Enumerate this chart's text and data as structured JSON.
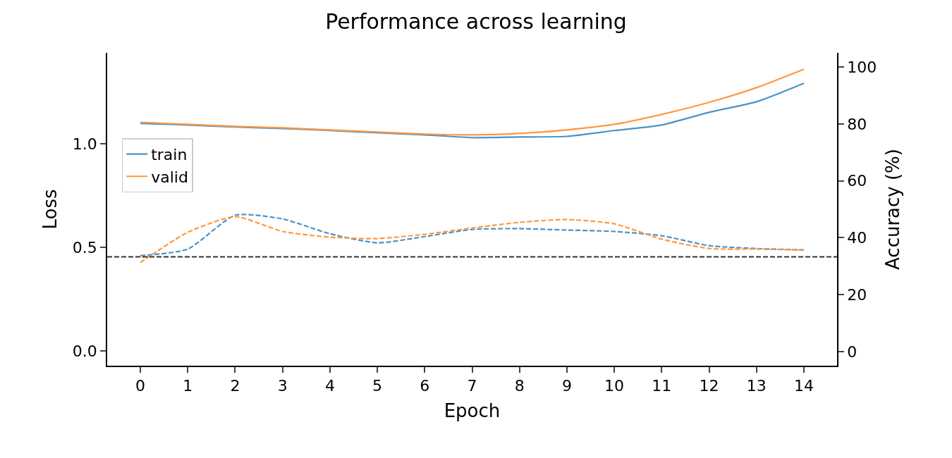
{
  "chart_data": {
    "type": "line",
    "title": "Performance across learning",
    "xlabel": "Epoch",
    "ylabel": "Loss",
    "y2label": "Accuracy (%)",
    "x": [
      0,
      1,
      2,
      3,
      4,
      5,
      6,
      7,
      8,
      9,
      10,
      11,
      12,
      13,
      14
    ],
    "series": [
      {
        "name": "train",
        "color": "#4a93c6",
        "line_style": "solid",
        "values": [
          1.099,
          1.092,
          1.082,
          1.075,
          1.065,
          1.054,
          1.044,
          1.031,
          1.034,
          1.037,
          1.065,
          1.092,
          1.153,
          1.204,
          1.293
        ]
      },
      {
        "name": "valid",
        "color": "#ff993e",
        "line_style": "solid",
        "values": [
          1.105,
          1.095,
          1.085,
          1.078,
          1.068,
          1.058,
          1.048,
          1.044,
          1.051,
          1.068,
          1.095,
          1.143,
          1.201,
          1.272,
          1.361
        ]
      },
      {
        "color": "#4a93c6",
        "line_style": "dashed",
        "axis": "y2",
        "values": [
          33.7,
          36.0,
          47.9,
          46.6,
          41.4,
          38.2,
          40.4,
          42.9,
          43.2,
          42.7,
          42.2,
          40.7,
          37.2,
          36.2,
          35.7
        ]
      },
      {
        "color": "#ff993e",
        "line_style": "dashed",
        "axis": "y2",
        "values": [
          31.3,
          41.9,
          47.4,
          42.2,
          40.2,
          39.7,
          41.2,
          43.4,
          45.4,
          46.4,
          44.9,
          39.5,
          36.2,
          36.0,
          35.7
        ]
      }
    ],
    "ref_lines": [
      {
        "axis": "y2",
        "value": 33.3,
        "color": "#333333",
        "line_style": "dashed"
      }
    ],
    "xlim": [
      -0.7,
      14.7
    ],
    "xticks": [
      0,
      1,
      2,
      3,
      4,
      5,
      6,
      7,
      8,
      9,
      10,
      11,
      12,
      13,
      14
    ],
    "ylim": [
      -0.07,
      1.44
    ],
    "yticks": [
      {
        "value": 0,
        "label": "0.0"
      },
      0.5,
      {
        "value": 1,
        "label": "1.0"
      }
    ],
    "y2lim": [
      -5,
      105
    ],
    "y2ticks": [
      0,
      20,
      40,
      60,
      80,
      100
    ],
    "legend": "center left"
  }
}
